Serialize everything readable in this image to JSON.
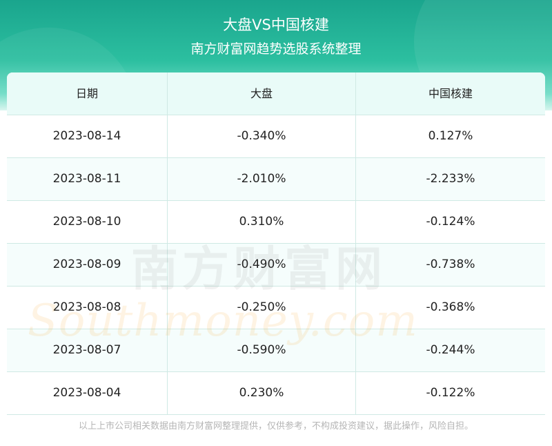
{
  "header": {
    "title": "大盘VS中国核建",
    "subtitle": "南方财富网趋势选股系统整理"
  },
  "table": {
    "columns": [
      "日期",
      "大盘",
      "中国核建"
    ],
    "rows": [
      [
        "2023-08-14",
        "-0.340%",
        "0.127%"
      ],
      [
        "2023-08-11",
        "-2.010%",
        "-2.233%"
      ],
      [
        "2023-08-10",
        "0.310%",
        "-0.124%"
      ],
      [
        "2023-08-09",
        "-0.490%",
        "-0.738%"
      ],
      [
        "2023-08-08",
        "-0.250%",
        "-0.368%"
      ],
      [
        "2023-08-07",
        "-0.590%",
        "-0.244%"
      ],
      [
        "2023-08-04",
        "0.230%",
        "-0.122%"
      ]
    ]
  },
  "watermark": {
    "chinese": "南方财富网",
    "english": "Southmoney.com"
  },
  "footer": {
    "disclaimer": "以上上市公司相关数据由南方财富网整理提供，仅供参考，不构成投资建议，据此操作，风险自担。"
  },
  "colors": {
    "header_green": "#1aa58d",
    "header_row_bg": "#e9fbf8",
    "border": "#cfe9e4",
    "footer_text": "#b5b5b5"
  }
}
